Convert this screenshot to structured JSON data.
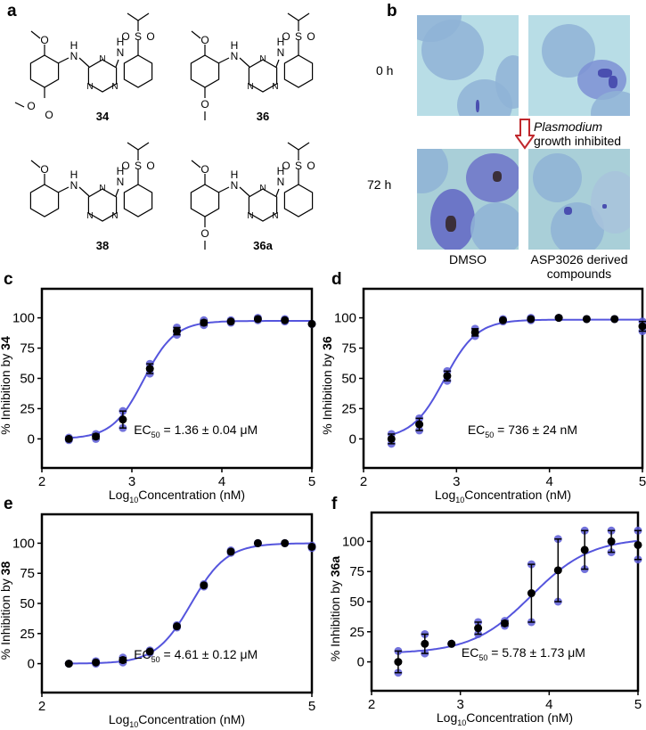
{
  "panels": {
    "a": "a",
    "b": "b",
    "c": "c",
    "d": "d",
    "e": "e",
    "f": "f"
  },
  "structures": [
    {
      "label": "34",
      "substituents": [
        "O",
        "O",
        "O"
      ]
    },
    {
      "label": "36",
      "substituents": [
        "O",
        "O"
      ]
    },
    {
      "label": "38",
      "substituents": [
        "O"
      ]
    },
    {
      "label": "36a",
      "substituents": [
        "O",
        "O",
        "N"
      ]
    }
  ],
  "atoms": {
    "N": "N",
    "H": "H",
    "S": "S",
    "O": "O"
  },
  "microscopy": {
    "row_labels": [
      "0 h",
      "72 h"
    ],
    "col_labels": [
      "DMSO",
      "ASP3026 derived compounds"
    ],
    "arrow_text_italic": "Plasmodium",
    "arrow_text": "growth inhibited",
    "arrow_color": "#c0282d"
  },
  "colors": {
    "replicate": "#5a5ad6",
    "mean": "#000000",
    "fit": "#5555dd"
  },
  "chart_data": [
    {
      "panel": "c",
      "type": "scatter",
      "xlabel": "Log10Concentration (nM)",
      "xlabel_main": "Log",
      "xlabel_sub": "10",
      "xlabel_rest": "Concentration (nM)",
      "ylabel": "% Inhibition by 34",
      "ylabel_prefix": "% Inhibition by ",
      "ylabel_compound": "34",
      "xlim": [
        2,
        5
      ],
      "ylim": [
        -24,
        124
      ],
      "xticks": [
        2,
        3,
        4,
        5
      ],
      "yticks": [
        0,
        25,
        50,
        75,
        100
      ],
      "x": [
        2.3,
        2.6,
        2.9,
        3.2,
        3.5,
        3.8,
        4.1,
        4.4,
        4.7,
        5.0
      ],
      "mean": [
        0,
        2,
        16,
        58,
        89,
        96,
        97,
        99,
        98,
        95
      ],
      "error": [
        1,
        2,
        7,
        4,
        3,
        2,
        1,
        1,
        1,
        0
      ],
      "fit": {
        "bottom": 0,
        "top": 97.5,
        "logEC50": 3.13,
        "hill": 2.5
      },
      "annotation": {
        "main": "EC",
        "sub": "50",
        "rest": " = 1.36 ± 0.04 μM"
      }
    },
    {
      "panel": "d",
      "type": "scatter",
      "xlabel": "Log10Concentration (nM)",
      "xlabel_main": "Log",
      "xlabel_sub": "10",
      "xlabel_rest": "Concentration (nM)",
      "ylabel": "% Inhibition by 36",
      "ylabel_prefix": "% Inhibition by ",
      "ylabel_compound": "36",
      "xlim": [
        2,
        5
      ],
      "ylim": [
        -24,
        124
      ],
      "xticks": [
        2,
        3,
        4,
        5
      ],
      "yticks": [
        0,
        25,
        50,
        75,
        100
      ],
      "x": [
        2.3,
        2.6,
        2.9,
        3.2,
        3.5,
        3.8,
        4.1,
        4.4,
        4.7,
        5.0
      ],
      "mean": [
        0,
        12,
        52,
        88,
        98,
        99,
        100,
        99,
        99,
        93
      ],
      "error": [
        4,
        5,
        4,
        3,
        1,
        1,
        0,
        0,
        0,
        4
      ],
      "fit": {
        "bottom": 0,
        "top": 98.5,
        "logEC50": 2.87,
        "hill": 2.5
      },
      "annotation": {
        "main": "EC",
        "sub": "50",
        "rest": " = 736 ± 24 nM"
      }
    },
    {
      "panel": "e",
      "type": "scatter",
      "xlabel": "Log10Concentration (nM)",
      "xlabel_main": "Log",
      "xlabel_sub": "10",
      "xlabel_rest": "Concentration (nM)",
      "ylabel": "% Inhibition by 38",
      "ylabel_prefix": "% Inhibition by ",
      "ylabel_compound": "38",
      "xlim": [
        2,
        5
      ],
      "ylim": [
        -24,
        124
      ],
      "xticks": [
        2,
        5
      ],
      "yticks": [
        0,
        25,
        50,
        75,
        100
      ],
      "x": [
        2.3,
        2.6,
        2.9,
        3.2,
        3.5,
        3.8,
        4.1,
        4.4,
        4.7,
        5.0
      ],
      "mean": [
        0,
        1,
        3,
        10,
        31,
        65,
        93,
        100,
        100,
        97
      ],
      "error": [
        0,
        1,
        2,
        1,
        1,
        1,
        1,
        0,
        0,
        1
      ],
      "fit": {
        "bottom": 0,
        "top": 100,
        "logEC50": 3.66,
        "hill": 2.2
      },
      "annotation": {
        "main": "EC",
        "sub": "50",
        "rest": " = 4.61 ± 0.12 μM"
      }
    },
    {
      "panel": "f",
      "type": "scatter",
      "xlabel": "Log10Concentration (nM)",
      "xlabel_main": "Log",
      "xlabel_sub": "10",
      "xlabel_rest": "Concentration (nM)",
      "ylabel": "% Inhibition by 36a",
      "ylabel_prefix": "% Inhibition by ",
      "ylabel_compound": "36a",
      "xlim": [
        2,
        5
      ],
      "ylim": [
        -24,
        124
      ],
      "xticks": [
        2,
        3,
        4,
        5
      ],
      "yticks": [
        0,
        25,
        50,
        75,
        100
      ],
      "x": [
        2.3,
        2.6,
        2.9,
        3.2,
        3.5,
        3.8,
        4.1,
        4.4,
        4.7,
        5.0
      ],
      "mean": [
        0,
        15,
        15,
        28,
        32,
        57,
        76,
        93,
        100,
        97
      ],
      "error": [
        9,
        8,
        0,
        5,
        2,
        24,
        26,
        16,
        9,
        12
      ],
      "fit": {
        "bottom": 7,
        "top": 103,
        "logEC50": 3.8,
        "hill": 1.3
      },
      "annotation": {
        "main": "EC",
        "sub": "50",
        "rest": " = 5.78 ± 1.73 μM"
      }
    }
  ]
}
